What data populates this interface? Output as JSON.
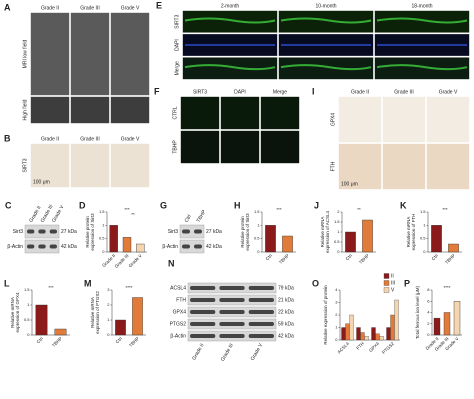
{
  "panels": [
    {
      "letter": "A",
      "columns": [
        "Grade II",
        "Grade III",
        "Grade V"
      ],
      "rows": [
        "MRI low field",
        "High field"
      ]
    },
    {
      "letter": "B",
      "columns": [
        "Grade II",
        "Grade III",
        "Grade V"
      ],
      "rows": [
        "SIRT3"
      ],
      "scale": "100 μm"
    },
    {
      "letter": "E",
      "columns": [
        "2-month",
        "10-month",
        "18-month"
      ],
      "rows": [
        "SIRT3",
        "DAPI",
        "Merge"
      ]
    },
    {
      "letter": "F",
      "columns": [
        "SIRT3",
        "DAPI",
        "Merge"
      ],
      "rows": [
        "CTRL",
        "TBHP"
      ]
    },
    {
      "letter": "I",
      "columns": [
        "Grade II",
        "Grade III",
        "Grade V"
      ],
      "rows": [
        "GPX4",
        "FTH"
      ],
      "scale": "100 μm"
    }
  ],
  "blots": [
    {
      "letter": "C",
      "lanes": [
        "Grade II",
        "Grade III",
        "Grade V"
      ],
      "bands": [
        {
          "name": "Sirt3",
          "size": "27 kDa"
        },
        {
          "name": "β-Actin",
          "size": "42 kDa"
        }
      ]
    },
    {
      "letter": "G",
      "lanes": [
        "Ctrl",
        "TBHP"
      ],
      "bands": [
        {
          "name": "Sirt3",
          "size": "27 kDa"
        },
        {
          "name": "β-Actin",
          "size": "42 kDa"
        }
      ]
    },
    {
      "letter": "N",
      "lanes": [
        "Grade II",
        "Grade III",
        "Grade V"
      ],
      "bands": [
        {
          "name": "ACSL4",
          "size": "79 kDa"
        },
        {
          "name": "FTH",
          "size": "21 kDa"
        },
        {
          "name": "GPX4",
          "size": "22 kDa"
        },
        {
          "name": "PTGS2",
          "size": "59 kDa"
        },
        {
          "name": "β-Actin",
          "size": "42 kDa"
        }
      ]
    }
  ],
  "chart_data": [
    {
      "type": "bar",
      "letter": "D",
      "ylabel": [
        "Relative protein",
        "expression of Sirt3"
      ],
      "categories": [
        "Grade II",
        "Grade III",
        "Grade V"
      ],
      "values": [
        1.0,
        0.55,
        0.3
      ],
      "colors": [
        "#8b1a1a",
        "#e07b39",
        "#f5d5b0"
      ],
      "ylim": [
        0,
        1.5
      ],
      "yticks": [
        0,
        0.5,
        1,
        1.5
      ],
      "annotations": [
        "***",
        "**"
      ]
    },
    {
      "type": "bar",
      "letter": "H",
      "ylabel": [
        "Relative protein",
        "expression of Sirt3"
      ],
      "categories": [
        "Ctrl",
        "TBHP"
      ],
      "values": [
        1.0,
        0.6
      ],
      "colors": [
        "#8b1a1a",
        "#e07b39"
      ],
      "ylim": [
        0,
        1.5
      ],
      "yticks": [
        0,
        0.5,
        1,
        1.5
      ],
      "annotations": [
        "***"
      ]
    },
    {
      "type": "bar",
      "letter": "J",
      "ylabel": [
        "Relative mRNA",
        "expression of ACSL4"
      ],
      "categories": [
        "Ctrl",
        "TBHP"
      ],
      "values": [
        1.0,
        1.6
      ],
      "colors": [
        "#8b1a1a",
        "#e07b39"
      ],
      "ylim": [
        0,
        2
      ],
      "yticks": [
        0,
        0.5,
        1,
        1.5,
        2
      ],
      "annotations": [
        "**"
      ]
    },
    {
      "type": "bar",
      "letter": "K",
      "ylabel": [
        "Relative mRNA",
        "expression of FTH"
      ],
      "categories": [
        "Ctrl",
        "TBHP"
      ],
      "values": [
        1.0,
        0.3
      ],
      "colors": [
        "#8b1a1a",
        "#e07b39"
      ],
      "ylim": [
        0,
        1.5
      ],
      "yticks": [
        0,
        0.5,
        1,
        1.5
      ],
      "annotations": [
        "***"
      ]
    },
    {
      "type": "bar",
      "letter": "L",
      "ylabel": [
        "Relative mRNA",
        "expression of GPX4"
      ],
      "categories": [
        "Ctrl",
        "TBHP"
      ],
      "values": [
        1.0,
        0.2
      ],
      "colors": [
        "#8b1a1a",
        "#e07b39"
      ],
      "ylim": [
        0,
        1.5
      ],
      "yticks": [
        0,
        0.5,
        1,
        1.5
      ],
      "annotations": [
        "***"
      ]
    },
    {
      "type": "bar",
      "letter": "M",
      "ylabel": [
        "Relative mRNA",
        "expression of PTGS2"
      ],
      "categories": [
        "Ctrl",
        "TBHP"
      ],
      "values": [
        1.0,
        2.5
      ],
      "colors": [
        "#8b1a1a",
        "#e07b39"
      ],
      "ylim": [
        0,
        3
      ],
      "yticks": [
        0,
        1,
        2,
        3
      ],
      "annotations": [
        "****"
      ]
    },
    {
      "type": "grouped",
      "letter": "O",
      "ylabel": [
        "Relative expression of protein"
      ],
      "categories": [
        "ACSL4",
        "FTH",
        "GPX4",
        "PTGS2"
      ],
      "series": [
        {
          "name": "II",
          "color": "#8b1a1a",
          "values": [
            1,
            1,
            1,
            1
          ]
        },
        {
          "name": "III",
          "color": "#e07b39",
          "values": [
            1.3,
            0.6,
            0.5,
            2.0
          ]
        },
        {
          "name": "V",
          "color": "#f5d5b0",
          "values": [
            2.0,
            0.3,
            0.3,
            3.2
          ]
        }
      ],
      "ylim": [
        0,
        4
      ],
      "yticks": [
        0,
        1,
        2,
        3,
        4
      ]
    },
    {
      "type": "bar",
      "letter": "P",
      "ylabel": [
        "Total ferrous ion level (μM)"
      ],
      "categories": [
        "Grade II",
        "Grade III",
        "Grade V"
      ],
      "values": [
        3,
        4,
        6
      ],
      "colors": [
        "#8b1a1a",
        "#e07b39",
        "#f5d5b0"
      ],
      "ylim": [
        0,
        8
      ],
      "yticks": [
        0,
        2,
        4,
        6,
        8
      ],
      "annotations": [
        "****"
      ]
    }
  ]
}
